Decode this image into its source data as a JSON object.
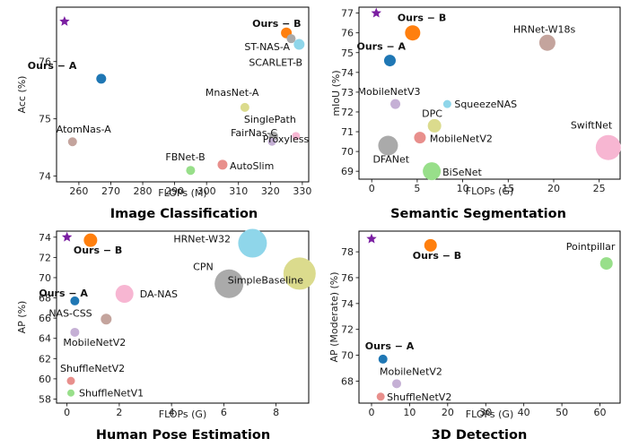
{
  "chart_data": [
    {
      "type": "scatter",
      "title": "Image Classification",
      "xlabel": "FLOPs (M)",
      "ylabel": "Acc (%)",
      "xlim": [
        253,
        332
      ],
      "ylim": [
        73.9,
        76.95
      ],
      "xticks": [
        {
          "v": 260,
          "t": "260"
        },
        {
          "v": 270,
          "t": "270"
        },
        {
          "v": 280,
          "t": "280"
        },
        {
          "v": 290,
          "t": "290"
        },
        {
          "v": 300,
          "t": "300"
        },
        {
          "v": 310,
          "t": "310"
        },
        {
          "v": 320,
          "t": "320"
        },
        {
          "v": 330,
          "t": "330"
        }
      ],
      "yticks": [
        {
          "v": 74,
          "t": "74"
        },
        {
          "v": 75,
          "t": "75"
        },
        {
          "v": 76,
          "t": "76"
        }
      ],
      "points": [
        {
          "label": "",
          "x": 255.5,
          "y": 76.7,
          "size": 6,
          "color": "#7b1fa2",
          "marker": "star"
        },
        {
          "label": "Ours − B",
          "x": 325,
          "y": 76.5,
          "size": 6,
          "color": "#ff7f0e",
          "bold": true
        },
        {
          "label": "ST-NAS-A",
          "x": 326.5,
          "y": 76.4,
          "size": 5,
          "color": "#aaaaaa"
        },
        {
          "label": "SCARLET-B",
          "x": 329,
          "y": 76.3,
          "size": 6,
          "color": "#8fd6ea"
        },
        {
          "label": "Ours − A",
          "x": 267,
          "y": 75.7,
          "size": 5.5,
          "color": "#1f77b4",
          "bold": true
        },
        {
          "label": "MnasNet-A",
          "x": 312,
          "y": 75.2,
          "size": 5,
          "color": "#dbdb8d"
        },
        {
          "label": "AtomNas-A",
          "x": 258,
          "y": 74.6,
          "size": 5,
          "color": "#c4a49d"
        },
        {
          "label": "SinglePath",
          "x": 321,
          "y": 74.7,
          "size": 5,
          "color": "#aaaaaa"
        },
        {
          "label": "FairNas-C",
          "x": 320.5,
          "y": 74.6,
          "size": 4.5,
          "color": "#c5b0d5"
        },
        {
          "label": "Proxyless",
          "x": 328,
          "y": 74.7,
          "size": 4.5,
          "color": "#f7b6d2"
        },
        {
          "label": "FBNet-B",
          "x": 295,
          "y": 74.1,
          "size": 5,
          "color": "#98df8a"
        },
        {
          "label": "AutoSlim",
          "x": 305,
          "y": 74.2,
          "size": 5.5,
          "color": "#e88f8c"
        }
      ]
    },
    {
      "type": "scatter",
      "title": "Semantic Segmentation",
      "xlabel": "FLOPs (G)",
      "ylabel": "mIoU (%)",
      "xlim": [
        -1.4,
        27.3
      ],
      "ylim": [
        68.6,
        77.3
      ],
      "xticks": [
        {
          "v": 0,
          "t": "0"
        },
        {
          "v": 5,
          "t": "5"
        },
        {
          "v": 10,
          "t": "10"
        },
        {
          "v": 15,
          "t": "15"
        },
        {
          "v": 20,
          "t": "20"
        },
        {
          "v": 25,
          "t": "25"
        }
      ],
      "yticks": [
        {
          "v": 69,
          "t": "69"
        },
        {
          "v": 70,
          "t": "70"
        },
        {
          "v": 71,
          "t": "71"
        },
        {
          "v": 72,
          "t": "72"
        },
        {
          "v": 73,
          "t": "73"
        },
        {
          "v": 74,
          "t": "74"
        },
        {
          "v": 75,
          "t": "75"
        },
        {
          "v": 76,
          "t": "76"
        },
        {
          "v": 77,
          "t": "77"
        }
      ],
      "points": [
        {
          "label": "",
          "x": 0.5,
          "y": 77,
          "size": 6,
          "color": "#7b1fa2",
          "marker": "star"
        },
        {
          "label": "Ours − B",
          "x": 4.5,
          "y": 76,
          "size": 8.5,
          "color": "#ff7f0e",
          "bold": true
        },
        {
          "label": "Ours − A",
          "x": 2,
          "y": 74.6,
          "size": 6.5,
          "color": "#1f77b4",
          "bold": true
        },
        {
          "label": "HRNet-W18s",
          "x": 19.3,
          "y": 75.5,
          "size": 9,
          "color": "#c4a49d"
        },
        {
          "label": "MobileNetV3",
          "x": 2.6,
          "y": 72.4,
          "size": 5.5,
          "color": "#c5b0d5"
        },
        {
          "label": "SqueezeNAS",
          "x": 8.3,
          "y": 72.4,
          "size": 4.5,
          "color": "#8fd6ea"
        },
        {
          "label": "DPC",
          "x": 6.9,
          "y": 71.3,
          "size": 7.5,
          "color": "#dbdb8d"
        },
        {
          "label": "MobileNetV2",
          "x": 5.3,
          "y": 70.7,
          "size": 6.5,
          "color": "#e88f8c"
        },
        {
          "label": "DFANet",
          "x": 1.8,
          "y": 70.3,
          "size": 11,
          "color": "#aaaaaa"
        },
        {
          "label": "BiSeNet",
          "x": 6.6,
          "y": 69,
          "size": 10,
          "color": "#98df8a"
        },
        {
          "label": "SwiftNet",
          "x": 26,
          "y": 70.2,
          "size": 14,
          "color": "#f7b6d2"
        }
      ]
    },
    {
      "type": "scatter",
      "title": "Human Pose Estimation",
      "xlabel": "FLOPs (G)",
      "ylabel": "AP (%)",
      "xlim": [
        -0.4,
        9.25
      ],
      "ylim": [
        57.6,
        74.6
      ],
      "xticks": [
        {
          "v": 0,
          "t": "0"
        },
        {
          "v": 2,
          "t": "2"
        },
        {
          "v": 4,
          "t": "4"
        },
        {
          "v": 6,
          "t": "6"
        },
        {
          "v": 8,
          "t": "8"
        }
      ],
      "yticks": [
        {
          "v": 58,
          "t": "58"
        },
        {
          "v": 60,
          "t": "60"
        },
        {
          "v": 62,
          "t": "62"
        },
        {
          "v": 64,
          "t": "64"
        },
        {
          "v": 66,
          "t": "66"
        },
        {
          "v": 68,
          "t": "68"
        },
        {
          "v": 70,
          "t": "70"
        },
        {
          "v": 72,
          "t": "72"
        },
        {
          "v": 74,
          "t": "74"
        }
      ],
      "points": [
        {
          "label": "",
          "x": 0,
          "y": 74,
          "size": 6,
          "color": "#7b1fa2",
          "marker": "star"
        },
        {
          "label": "Ours − B",
          "x": 0.9,
          "y": 73.7,
          "size": 7.5,
          "color": "#ff7f0e",
          "bold": true
        },
        {
          "label": "HRNet-W32",
          "x": 7.1,
          "y": 73.4,
          "size": 16,
          "color": "#8fd6ea"
        },
        {
          "label": "CPN",
          "x": 6.2,
          "y": 69.4,
          "size": 16,
          "color": "#aaaaaa"
        },
        {
          "label": "SimpleBaseline",
          "x": 8.9,
          "y": 70.4,
          "size": 18,
          "color": "#dbdb8d"
        },
        {
          "label": "Ours − A",
          "x": 0.3,
          "y": 67.7,
          "size": 5,
          "color": "#1f77b4",
          "bold": true
        },
        {
          "label": "DA-NAS",
          "x": 2.2,
          "y": 68.4,
          "size": 10,
          "color": "#f7b6d2"
        },
        {
          "label": "NAS-CSS",
          "x": 1.5,
          "y": 65.9,
          "size": 6,
          "color": "#c4a49d"
        },
        {
          "label": "MobileNetV2",
          "x": 0.3,
          "y": 64.6,
          "size": 5,
          "color": "#c5b0d5"
        },
        {
          "label": "ShuffleNetV2",
          "x": 0.15,
          "y": 59.8,
          "size": 4.5,
          "color": "#e88f8c"
        },
        {
          "label": "ShuffleNetV1",
          "x": 0.15,
          "y": 58.6,
          "size": 4,
          "color": "#98df8a"
        }
      ]
    },
    {
      "type": "scatter",
      "title": "3D Detection",
      "xlabel": "FLOPs (G)",
      "ylabel": "AP (Moderate) (%)",
      "xlim": [
        -3.3,
        65.3
      ],
      "ylim": [
        66.3,
        79.6
      ],
      "xticks": [
        {
          "v": 0,
          "t": "0"
        },
        {
          "v": 10,
          "t": "10"
        },
        {
          "v": 20,
          "t": "20"
        },
        {
          "v": 30,
          "t": "30"
        },
        {
          "v": 40,
          "t": "40"
        },
        {
          "v": 50,
          "t": "50"
        },
        {
          "v": 60,
          "t": "60"
        }
      ],
      "yticks": [
        {
          "v": 68,
          "t": "68"
        },
        {
          "v": 70,
          "t": "70"
        },
        {
          "v": 72,
          "t": "72"
        },
        {
          "v": 74,
          "t": "74"
        },
        {
          "v": 76,
          "t": "76"
        },
        {
          "v": 78,
          "t": "78"
        }
      ],
      "points": [
        {
          "label": "",
          "x": 0,
          "y": 79,
          "size": 6,
          "color": "#7b1fa2",
          "marker": "star"
        },
        {
          "label": "Ours − B",
          "x": 15.5,
          "y": 78.5,
          "size": 7,
          "color": "#ff7f0e",
          "bold": true
        },
        {
          "label": "Pointpillar",
          "x": 61.7,
          "y": 77.1,
          "size": 7,
          "color": "#98df8a"
        },
        {
          "label": "Ours − A",
          "x": 3,
          "y": 69.7,
          "size": 5,
          "color": "#1f77b4",
          "bold": true
        },
        {
          "label": "MobileNetV2",
          "x": 6.6,
          "y": 67.8,
          "size": 5,
          "color": "#c5b0d5"
        },
        {
          "label": "ShuffleNetV2",
          "x": 2.4,
          "y": 66.8,
          "size": 4.5,
          "color": "#e88f8c"
        }
      ]
    }
  ]
}
